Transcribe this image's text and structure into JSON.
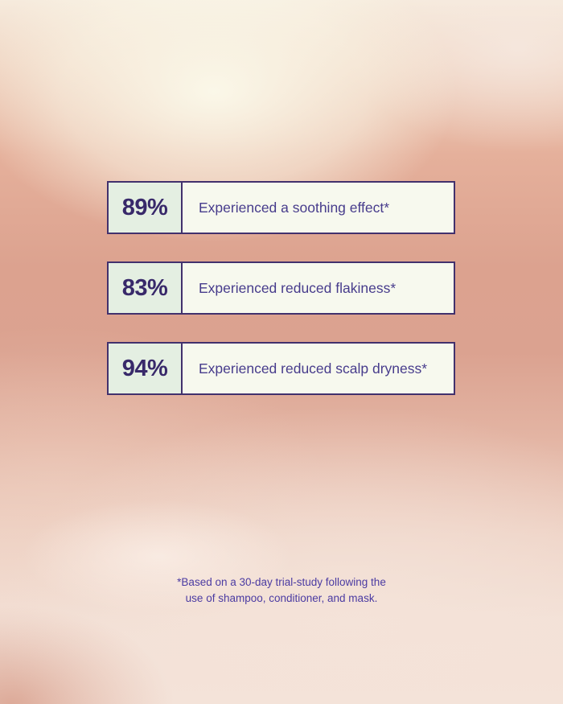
{
  "stats": {
    "rows": [
      {
        "value": "89%",
        "label": "Experienced a soothing effect*"
      },
      {
        "value": "83%",
        "label": "Experienced reduced flakiness*"
      },
      {
        "value": "94%",
        "label": "Experienced reduced scalp dryness*"
      }
    ]
  },
  "footnote": {
    "line1": "*Based on a 30-day trial-study following the",
    "line2": "use of shampoo, conditioner, and mask."
  },
  "chart_data": {
    "type": "table",
    "categories": [
      "Experienced a soothing effect*",
      "Experienced reduced flakiness*",
      "Experienced reduced scalp dryness*"
    ],
    "values": [
      89,
      83,
      94
    ],
    "unit": "%",
    "footnote": "*Based on a 30-day trial-study following the use of shampoo, conditioner, and mask."
  },
  "colors": {
    "accent_purple_border": "#42316d",
    "stat_value_text": "#38296a",
    "stat_label_text": "#473c8c",
    "footnote_text": "#4b3ba2",
    "stat_value_cell_bg": "#e4efe2",
    "stat_label_cell_bg": "#f7f9ee",
    "background_salmon": "#dba290",
    "background_cream": "#f6ebdd"
  }
}
